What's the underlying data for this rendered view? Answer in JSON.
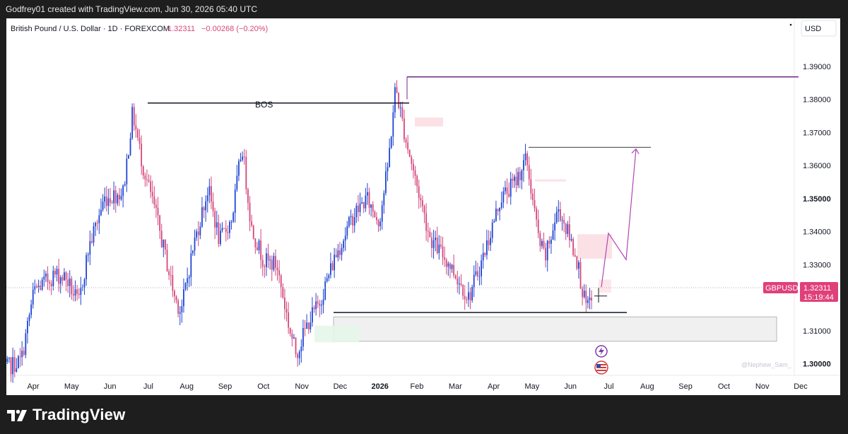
{
  "header": {
    "attribution": "Godfrey01 created with TradingView.com, Jun 30, 2026 05:40 UTC"
  },
  "symbol": {
    "title": "British Pound / U.S. Dollar · 1D · FOREXCOM",
    "price": "1.32311",
    "change": "−0.00268 (−0.20%)",
    "currency": "USD",
    "label": "GBPUSD",
    "last_price_label": "1.32311",
    "countdown": "15:19:44"
  },
  "annotation": {
    "bos": "BOS"
  },
  "watermark": "@Nephew_Sam_",
  "footer": {
    "logo_text": "TradingView"
  },
  "colors": {
    "up": "#1e45d2",
    "down": "#d4467b",
    "price_tag": "#e0407a",
    "line": "#6b2a86",
    "projection": "#b146b6"
  },
  "chart_data": {
    "type": "candlestick",
    "title": "British Pound / U.S. Dollar · 1D · FOREXCOM",
    "y_axis_ticks": [
      "1.39000",
      "1.38000",
      "1.37000",
      "1.36000",
      "1.35000",
      "1.34000",
      "1.33000",
      "1.32000",
      "1.31000",
      "1.30000"
    ],
    "ylim": [
      1.2965,
      1.4045
    ],
    "x_axis_ticks": [
      "Apr",
      "May",
      "Jun",
      "Jul",
      "Aug",
      "Sep",
      "Oct",
      "Nov",
      "Dec",
      "2026",
      "Feb",
      "Mar",
      "Apr",
      "May",
      "Jun",
      "Jul",
      "Aug",
      "Sep",
      "Oct",
      "Nov",
      "Dec"
    ],
    "price_path_close": [
      [
        "Mar 20",
        1.298
      ],
      [
        "Apr 5",
        1.301
      ],
      [
        "Apr 15",
        1.322
      ],
      [
        "May 1",
        1.327
      ],
      [
        "May 10",
        1.326
      ],
      [
        "May 20",
        1.318
      ],
      [
        "May 28",
        1.335
      ],
      [
        "Jun 10",
        1.35
      ],
      [
        "Jun 25",
        1.352
      ],
      [
        "Jul 2",
        1.376
      ],
      [
        "Jul 10",
        1.36
      ],
      [
        "Jul 20",
        1.346
      ],
      [
        "Aug 5",
        1.32
      ],
      [
        "Aug 10",
        1.316
      ],
      [
        "Aug 20",
        1.336
      ],
      [
        "Sep 1",
        1.353
      ],
      [
        "Sep 10",
        1.337
      ],
      [
        "Sep 20",
        1.344
      ],
      [
        "Sep 28",
        1.366
      ],
      [
        "Oct 5",
        1.341
      ],
      [
        "Oct 15",
        1.331
      ],
      [
        "Oct 25",
        1.33
      ],
      [
        "Nov 5",
        1.31
      ],
      [
        "Nov 10",
        1.303
      ],
      [
        "Nov 20",
        1.313
      ],
      [
        "Nov 28",
        1.318
      ],
      [
        "Dec 10",
        1.332
      ],
      [
        "Dec 25",
        1.345
      ],
      [
        "Jan 5",
        1.35
      ],
      [
        "Jan 15",
        1.343
      ],
      [
        "Jan 22",
        1.36
      ],
      [
        "Jan 28",
        1.384
      ],
      [
        "Feb 5",
        1.369
      ],
      [
        "Feb 15",
        1.353
      ],
      [
        "Feb 25",
        1.338
      ],
      [
        "Mar 10",
        1.33
      ],
      [
        "Mar 25",
        1.32
      ],
      [
        "Apr 5",
        1.331
      ],
      [
        "Apr 20",
        1.35
      ],
      [
        "May 1",
        1.355
      ],
      [
        "May 10",
        1.362
      ],
      [
        "May 20",
        1.337
      ],
      [
        "May 25",
        1.332
      ],
      [
        "Jun 5",
        1.347
      ],
      [
        "Jun 15",
        1.337
      ],
      [
        "Jun 20",
        1.331
      ],
      [
        "Jun 25",
        1.32
      ],
      [
        "Jun 28",
        1.316
      ],
      [
        "Jul 2",
        1.323
      ]
    ],
    "levels": {
      "top_line": 1.3868,
      "bos_line": 1.3789,
      "may_high_line": 1.3655,
      "bottom_line": 1.3155,
      "demand_zone": [
        1.3068,
        1.3142
      ],
      "supply_zone_jun": [
        1.3318,
        1.3392
      ]
    },
    "projection_path": [
      1.3232,
      1.3395,
      1.3315,
      1.365
    ],
    "last_price": 1.32311,
    "grid": false
  }
}
